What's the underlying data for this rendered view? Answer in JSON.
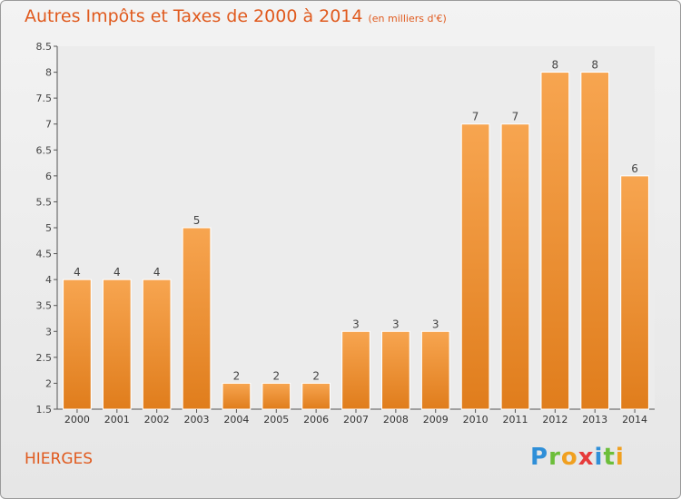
{
  "header": {
    "title": "Autres Impôts et Taxes de 2000 à 2014",
    "subtitle": "(en milliers d'€)"
  },
  "footer": {
    "place": "HIERGES",
    "logo": [
      "P",
      "r",
      "o",
      "x",
      "i",
      "t",
      "i"
    ]
  },
  "colors": {
    "accent": "#e05a1e",
    "bar_light": "#f7a550",
    "bar_dark": "#e07d1c"
  },
  "chart_data": {
    "type": "bar",
    "categories": [
      "2000",
      "2001",
      "2002",
      "2003",
      "2004",
      "2005",
      "2006",
      "2007",
      "2008",
      "2009",
      "2010",
      "2011",
      "2012",
      "2013",
      "2014"
    ],
    "values": [
      4,
      4,
      4,
      5,
      2,
      2,
      2,
      3,
      3,
      3,
      7,
      7,
      8,
      8,
      6
    ],
    "labels": [
      "4",
      "4",
      "4",
      "5",
      "2",
      "2",
      "2",
      "3",
      "3",
      "3",
      "7",
      "7",
      "8",
      "8",
      "6"
    ],
    "title": "Autres Impôts et Taxes de 2000 à 2014",
    "subtitle": "(en milliers d'€)",
    "xlabel": "",
    "ylabel": "",
    "ylim": [
      1.5,
      8.5
    ],
    "yticks": [
      "1.5",
      "2",
      "2.5",
      "3",
      "3.5",
      "4",
      "4.5",
      "5",
      "5.5",
      "6",
      "6.5",
      "7",
      "7.5",
      "8",
      "8.5"
    ],
    "grid": false,
    "legend": "none"
  }
}
